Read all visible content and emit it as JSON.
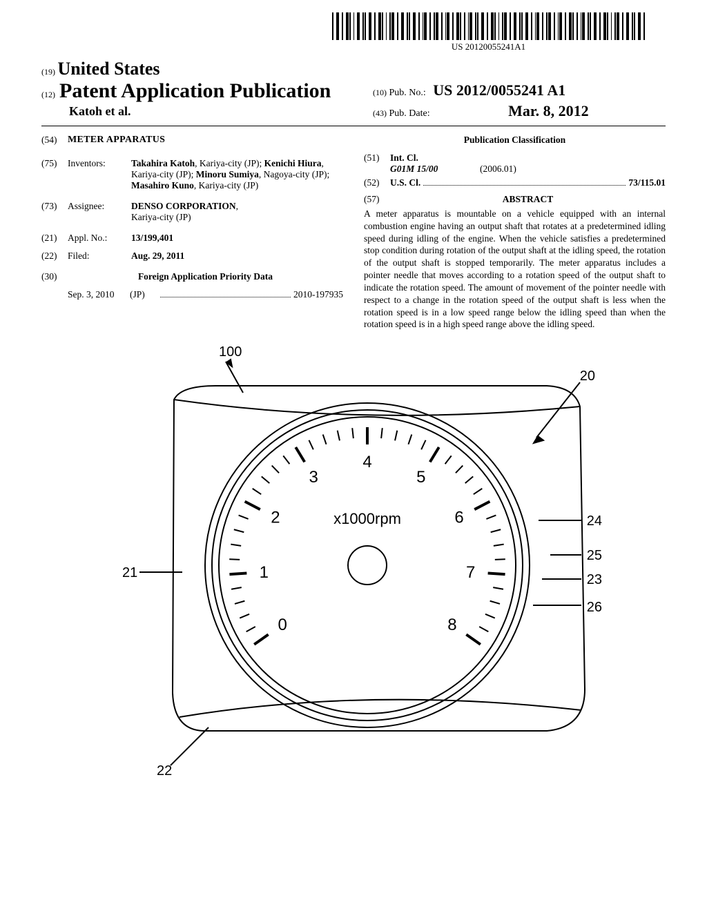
{
  "barcode_text": "US 20120055241A1",
  "header": {
    "code19": "(19)",
    "country": "United States",
    "code12": "(12)",
    "pub_type": "Patent Application Publication",
    "authors": "Katoh et al.",
    "code10": "(10)",
    "pubno_label": "Pub. No.:",
    "pubno": "US 2012/0055241 A1",
    "code43": "(43)",
    "pubdate_label": "Pub. Date:",
    "pubdate": "Mar. 8, 2012"
  },
  "left": {
    "code54": "(54)",
    "title": "METER APPARATUS",
    "code75": "(75)",
    "inventors_label": "Inventors:",
    "inventors": "Takahira Katoh, Kariya-city (JP); Kenichi Hiura, Kariya-city (JP); Minoru Sumiya, Nagoya-city (JP); Masahiro Kuno, Kariya-city (JP)",
    "inv1": "Takahira Katoh",
    "inv1_loc": ", Kariya-city (JP);",
    "inv2": "Kenichi Hiura",
    "inv2_loc": ", Kariya-city (JP);",
    "inv3": "Minoru Sumiya",
    "inv3_loc": ", Nagoya-city (JP);",
    "inv4": "Masahiro Kuno",
    "inv4_loc": ", Kariya-city (JP)",
    "code73": "(73)",
    "assignee_label": "Assignee:",
    "assignee_name": "DENSO CORPORATION",
    "assignee_loc": "Kariya-city (JP)",
    "code21": "(21)",
    "applno_label": "Appl. No.:",
    "applno": "13/199,401",
    "code22": "(22)",
    "filed_label": "Filed:",
    "filed": "Aug. 29, 2011",
    "code30": "(30)",
    "priority_hd": "Foreign Application Priority Data",
    "priority_date": "Sep. 3, 2010",
    "priority_cc": "(JP)",
    "priority_no": "2010-197935"
  },
  "right": {
    "class_hd": "Publication Classification",
    "code51": "(51)",
    "intcl_label": "Int. Cl.",
    "intcl_sym": "G01M 15/00",
    "intcl_date": "(2006.01)",
    "code52": "(52)",
    "uscl_label": "U.S. Cl.",
    "uscl": "73/115.01",
    "code57": "(57)",
    "abstract_hd": "ABSTRACT",
    "abstract": "A meter apparatus is mountable on a vehicle equipped with an internal combustion engine having an output shaft that rotates at a predetermined idling speed during idling of the engine. When the vehicle satisfies a predetermined stop condition during rotation of the output shaft at the idling speed, the rotation of the output shaft is stopped temporarily. The meter apparatus includes a pointer needle that moves according to a rotation speed of the output shaft to indicate the rotation speed. The amount of movement of the pointer needle with respect to a change in the rotation speed of the output shaft is less when the rotation speed is in a low speed range below the idling speed than when the rotation speed is in a high speed range above the idling speed."
  },
  "figure": {
    "ref100": "100",
    "ref20": "20",
    "ref21": "21",
    "ref22": "22",
    "ref23": "23",
    "ref24": "24",
    "ref25": "25",
    "ref26": "26",
    "units": "x1000rpm",
    "dial": [
      "0",
      "1",
      "2",
      "3",
      "4",
      "5",
      "6",
      "7",
      "8"
    ]
  }
}
